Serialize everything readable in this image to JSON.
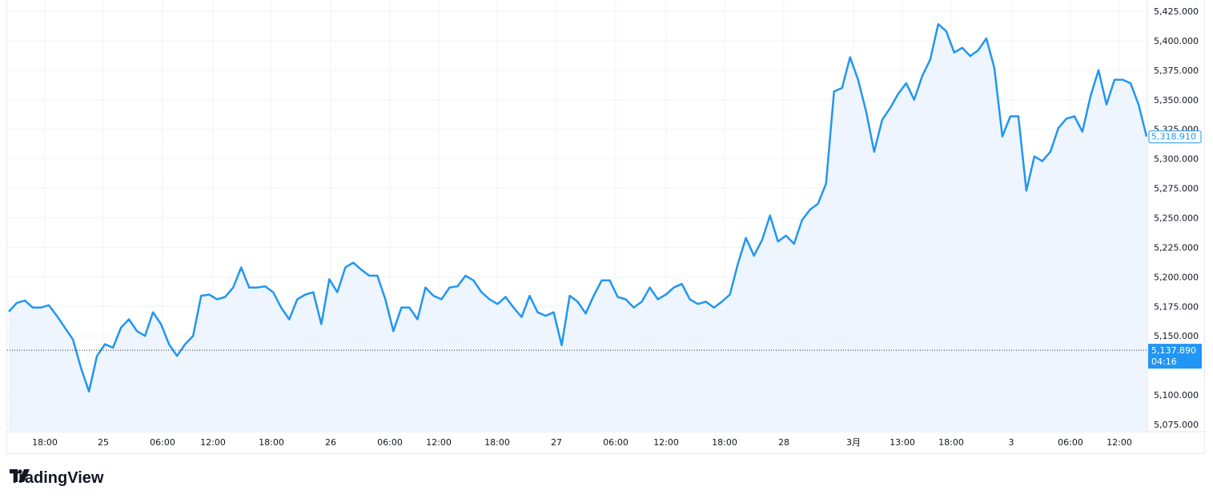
{
  "chart_data": {
    "type": "area",
    "title": "",
    "xlabel": "",
    "ylabel": "",
    "ylim": [
      5065,
      5432
    ],
    "grid": true,
    "line_color": "#2196f3",
    "fill_color": "#eef5fe",
    "y_ticks": [
      "5,425.000",
      "5,400.000",
      "5,375.000",
      "5,350.000",
      "5,325.000",
      "5,300.000",
      "5,275.000",
      "5,250.000",
      "5,225.000",
      "5,200.000",
      "5,175.000",
      "5,150.000",
      "5,100.000",
      "5,075.000"
    ],
    "x_ticks": [
      "18:00",
      "25",
      "06:00",
      "12:00",
      "18:00",
      "26",
      "06:00",
      "12:00",
      "18:00",
      "27",
      "06:00",
      "12:00",
      "18:00",
      "28",
      "3月",
      "13:00",
      "18:00",
      "3",
      "06:00",
      "12:00"
    ],
    "values": [
      5170.5,
      5178,
      5180,
      5174,
      5174,
      5176,
      5167,
      5157,
      5147,
      5123,
      5103,
      5133,
      5143,
      5140,
      5157,
      5164,
      5154,
      5150,
      5170,
      5160,
      5143,
      5133,
      5143,
      5150,
      5184,
      5185,
      5181,
      5183,
      5191,
      5208,
      5191,
      5191,
      5192,
      5187,
      5174,
      5164,
      5181,
      5185,
      5187,
      5160,
      5198,
      5187,
      5208,
      5212,
      5206,
      5201,
      5201,
      5181,
      5154,
      5174,
      5174,
      5164,
      5191,
      5184,
      5181,
      5191,
      5192,
      5201,
      5197,
      5187,
      5181,
      5177,
      5183,
      5174,
      5166,
      5184,
      5170,
      5167,
      5170,
      5142,
      5184,
      5179,
      5169,
      5184,
      5197,
      5197,
      5183,
      5181,
      5174,
      5179,
      5191,
      5181,
      5185,
      5191,
      5194,
      5181,
      5177,
      5179,
      5174,
      5179,
      5185,
      5211,
      5233,
      5218,
      5231,
      5252,
      5230,
      5235,
      5228,
      5248,
      5257,
      5262,
      5279,
      5357,
      5360,
      5386,
      5367,
      5340,
      5306,
      5333,
      5343,
      5355,
      5364,
      5350,
      5370,
      5384,
      5414,
      5408,
      5390,
      5394,
      5387,
      5392,
      5402,
      5377,
      5319,
      5336,
      5336,
      5273,
      5302,
      5298,
      5306,
      5326,
      5334,
      5336,
      5323,
      5353,
      5375,
      5346,
      5367,
      5367,
      5364,
      5346,
      5318.91
    ],
    "last_price": {
      "label": "5,318.910",
      "value": 5318.91
    },
    "reference_line": {
      "label": "5,137.890",
      "countdown": "04:16",
      "value": 5137.89,
      "color": "#2196f3"
    }
  },
  "logo": {
    "text": "TradingView"
  }
}
